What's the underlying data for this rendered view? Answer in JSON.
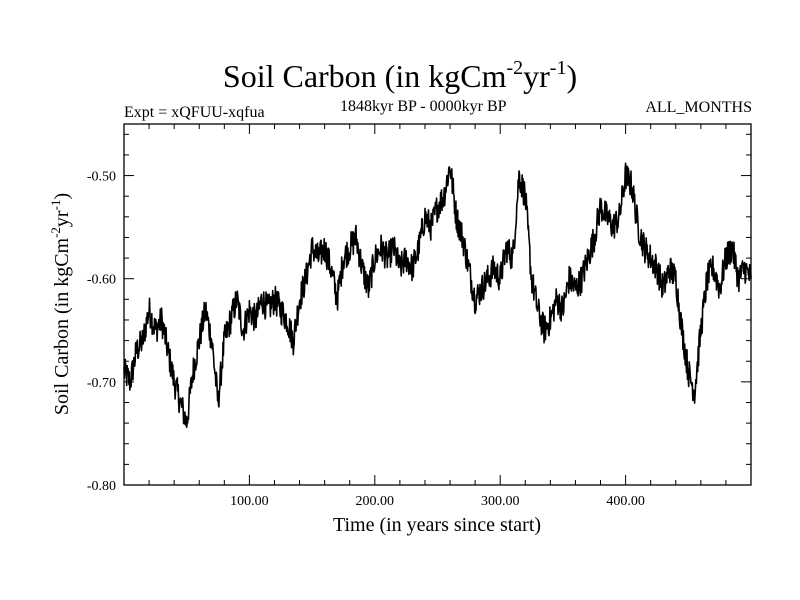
{
  "header": {
    "title_main": "Soil Carbon (in kgCm",
    "title_sup1": "-2",
    "title_mid": "yr",
    "title_sup2": "-1",
    "title_end": ")",
    "experiment": "Expt = xQFUU-xqfua",
    "period": "1848kyr BP - 0000kyr BP",
    "months": "ALL_MONTHS"
  },
  "chart_data": {
    "type": "line",
    "title": "Soil Carbon (in kgCm-2yr-1)",
    "xlabel": "Time (in years since start)",
    "ylabel": "Soil Carbon (in kgCm-2yr-1)",
    "ylabel_parts": {
      "main": "Soil Carbon (in kgCm",
      "sup1": "-2",
      "mid": "yr",
      "sup2": "-1",
      "end": ")"
    },
    "xlim": [
      0,
      500
    ],
    "ylim": [
      -0.8,
      -0.45
    ],
    "xticks": [
      100,
      200,
      300,
      400
    ],
    "xtick_labels": [
      "100.00",
      "200.00",
      "300.00",
      "400.00"
    ],
    "yticks": [
      -0.8,
      -0.7,
      -0.6,
      -0.5
    ],
    "ytick_labels": [
      "-0.80",
      "-0.70",
      "-0.60",
      "-0.50"
    ],
    "line_color": "#000000",
    "series": [
      {
        "name": "Soil Carbon",
        "x": [
          0,
          5,
          10,
          15,
          20,
          25,
          30,
          35,
          40,
          45,
          50,
          55,
          60,
          65,
          70,
          75,
          80,
          85,
          90,
          95,
          100,
          105,
          110,
          115,
          120,
          125,
          130,
          135,
          140,
          145,
          150,
          155,
          160,
          165,
          170,
          175,
          180,
          185,
          190,
          195,
          200,
          205,
          210,
          215,
          220,
          225,
          230,
          235,
          240,
          245,
          250,
          255,
          260,
          265,
          270,
          275,
          280,
          285,
          290,
          295,
          300,
          305,
          310,
          315,
          320,
          325,
          330,
          335,
          340,
          345,
          350,
          355,
          360,
          365,
          370,
          375,
          380,
          385,
          390,
          395,
          400,
          405,
          410,
          415,
          420,
          425,
          430,
          435,
          440,
          445,
          450,
          455,
          460,
          465,
          470,
          475,
          480,
          485,
          490,
          495,
          500
        ],
        "y": [
          -0.69,
          -0.7,
          -0.67,
          -0.66,
          -0.63,
          -0.65,
          -0.64,
          -0.67,
          -0.7,
          -0.72,
          -0.74,
          -0.69,
          -0.66,
          -0.63,
          -0.66,
          -0.72,
          -0.66,
          -0.64,
          -0.62,
          -0.65,
          -0.63,
          -0.64,
          -0.62,
          -0.63,
          -0.62,
          -0.63,
          -0.64,
          -0.66,
          -0.62,
          -0.6,
          -0.57,
          -0.58,
          -0.57,
          -0.59,
          -0.62,
          -0.58,
          -0.57,
          -0.56,
          -0.59,
          -0.61,
          -0.58,
          -0.57,
          -0.58,
          -0.57,
          -0.59,
          -0.58,
          -0.59,
          -0.57,
          -0.54,
          -0.55,
          -0.53,
          -0.52,
          -0.49,
          -0.54,
          -0.56,
          -0.59,
          -0.62,
          -0.61,
          -0.6,
          -0.59,
          -0.6,
          -0.57,
          -0.58,
          -0.5,
          -0.52,
          -0.6,
          -0.63,
          -0.65,
          -0.64,
          -0.62,
          -0.63,
          -0.6,
          -0.61,
          -0.6,
          -0.58,
          -0.56,
          -0.53,
          -0.54,
          -0.55,
          -0.54,
          -0.5,
          -0.51,
          -0.55,
          -0.57,
          -0.58,
          -0.59,
          -0.61,
          -0.59,
          -0.6,
          -0.65,
          -0.69,
          -0.71,
          -0.65,
          -0.6,
          -0.59,
          -0.61,
          -0.58,
          -0.57,
          -0.6,
          -0.59,
          -0.6
        ]
      }
    ]
  }
}
